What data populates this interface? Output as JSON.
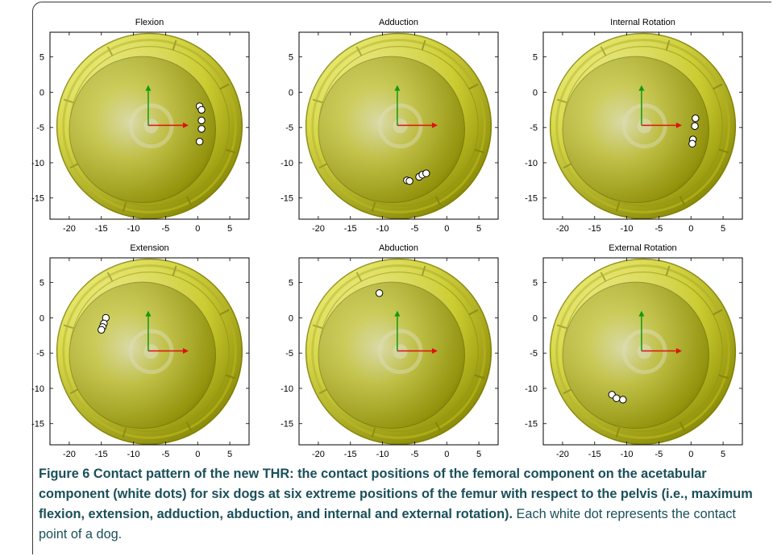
{
  "figure": {
    "caption_label": "Figure 6",
    "caption_bold": "Contact pattern of the new THR: the contact positions of the femoral component on the acetabular component (white dots) for six dogs at six extreme positions of the femur with respect to the pelvis (i.e., maximum flexion, extension, adduction, abduction, and internal and external rotation).",
    "caption_rest": "Each white dot represents the contact point of a dog."
  },
  "colors": {
    "cup_light": "#fbfb8a",
    "cup_mid": "#e6e61a",
    "cup_dark": "#8f8f00",
    "axis_x_arrow": "#dd1111",
    "axis_y_arrow": "#119911",
    "dot_fill": "#ffffff"
  },
  "chart_data": [
    {
      "type": "scatter",
      "title": "Flexion",
      "xlim": [
        -23,
        8
      ],
      "ylim": [
        -18,
        8.5
      ],
      "xticks": [
        "-20",
        "-15",
        "-10",
        "-5",
        "0",
        "5"
      ],
      "yticks": [
        "5",
        "0",
        "-5",
        "-10",
        "-15"
      ],
      "points": [
        [
          0.3,
          -2.0
        ],
        [
          0.6,
          -2.5
        ],
        [
          0.6,
          -4.0
        ],
        [
          0.6,
          -5.2
        ],
        [
          0.3,
          -7.0
        ]
      ]
    },
    {
      "type": "scatter",
      "title": "Adduction",
      "xlim": [
        -23,
        8
      ],
      "ylim": [
        -18,
        8.5
      ],
      "xticks": [
        "-20",
        "-15",
        "-10",
        "-5",
        "0",
        "5"
      ],
      "yticks": [
        "5",
        "0",
        "-5",
        "-10",
        "-15"
      ],
      "points": [
        [
          -6.2,
          -12.5
        ],
        [
          -5.8,
          -12.6
        ],
        [
          -4.3,
          -12.0
        ],
        [
          -3.8,
          -11.7
        ],
        [
          -3.2,
          -11.5
        ]
      ]
    },
    {
      "type": "scatter",
      "title": "Internal Rotation",
      "xlim": [
        -23,
        8
      ],
      "ylim": [
        -18,
        8.5
      ],
      "xticks": [
        "-20",
        "-15",
        "-10",
        "-5",
        "0",
        "5"
      ],
      "yticks": [
        "5",
        "0",
        "-5",
        "-10",
        "-15"
      ],
      "points": [
        [
          0.7,
          -3.7
        ],
        [
          0.6,
          -4.8
        ],
        [
          0.3,
          -6.7
        ],
        [
          0.2,
          -7.3
        ]
      ]
    },
    {
      "type": "scatter",
      "title": "Extension",
      "xlim": [
        -23,
        8
      ],
      "ylim": [
        -18,
        8.5
      ],
      "xticks": [
        "-20",
        "-15",
        "-10",
        "-5",
        "0",
        "5"
      ],
      "yticks": [
        "5",
        "0",
        "-5",
        "-10",
        "-15"
      ],
      "points": [
        [
          -14.3,
          0.0
        ],
        [
          -14.6,
          -0.8
        ],
        [
          -14.8,
          -1.3
        ],
        [
          -15.0,
          -1.7
        ]
      ]
    },
    {
      "type": "scatter",
      "title": "Abduction",
      "xlim": [
        -23,
        8
      ],
      "ylim": [
        -18,
        8.5
      ],
      "xticks": [
        "-20",
        "-15",
        "-10",
        "-5",
        "0",
        "5"
      ],
      "yticks": [
        "5",
        "0",
        "-5",
        "-10",
        "-15"
      ],
      "points": [
        [
          -10.5,
          3.5
        ]
      ]
    },
    {
      "type": "scatter",
      "title": "External Rotation",
      "xlim": [
        -23,
        8
      ],
      "ylim": [
        -18,
        8.5
      ],
      "xticks": [
        "-20",
        "-15",
        "-10",
        "-5",
        "0",
        "5"
      ],
      "yticks": [
        "5",
        "0",
        "-5",
        "-10",
        "-15"
      ],
      "points": [
        [
          -12.3,
          -10.9
        ],
        [
          -11.6,
          -11.4
        ],
        [
          -10.6,
          -11.6
        ]
      ]
    }
  ]
}
